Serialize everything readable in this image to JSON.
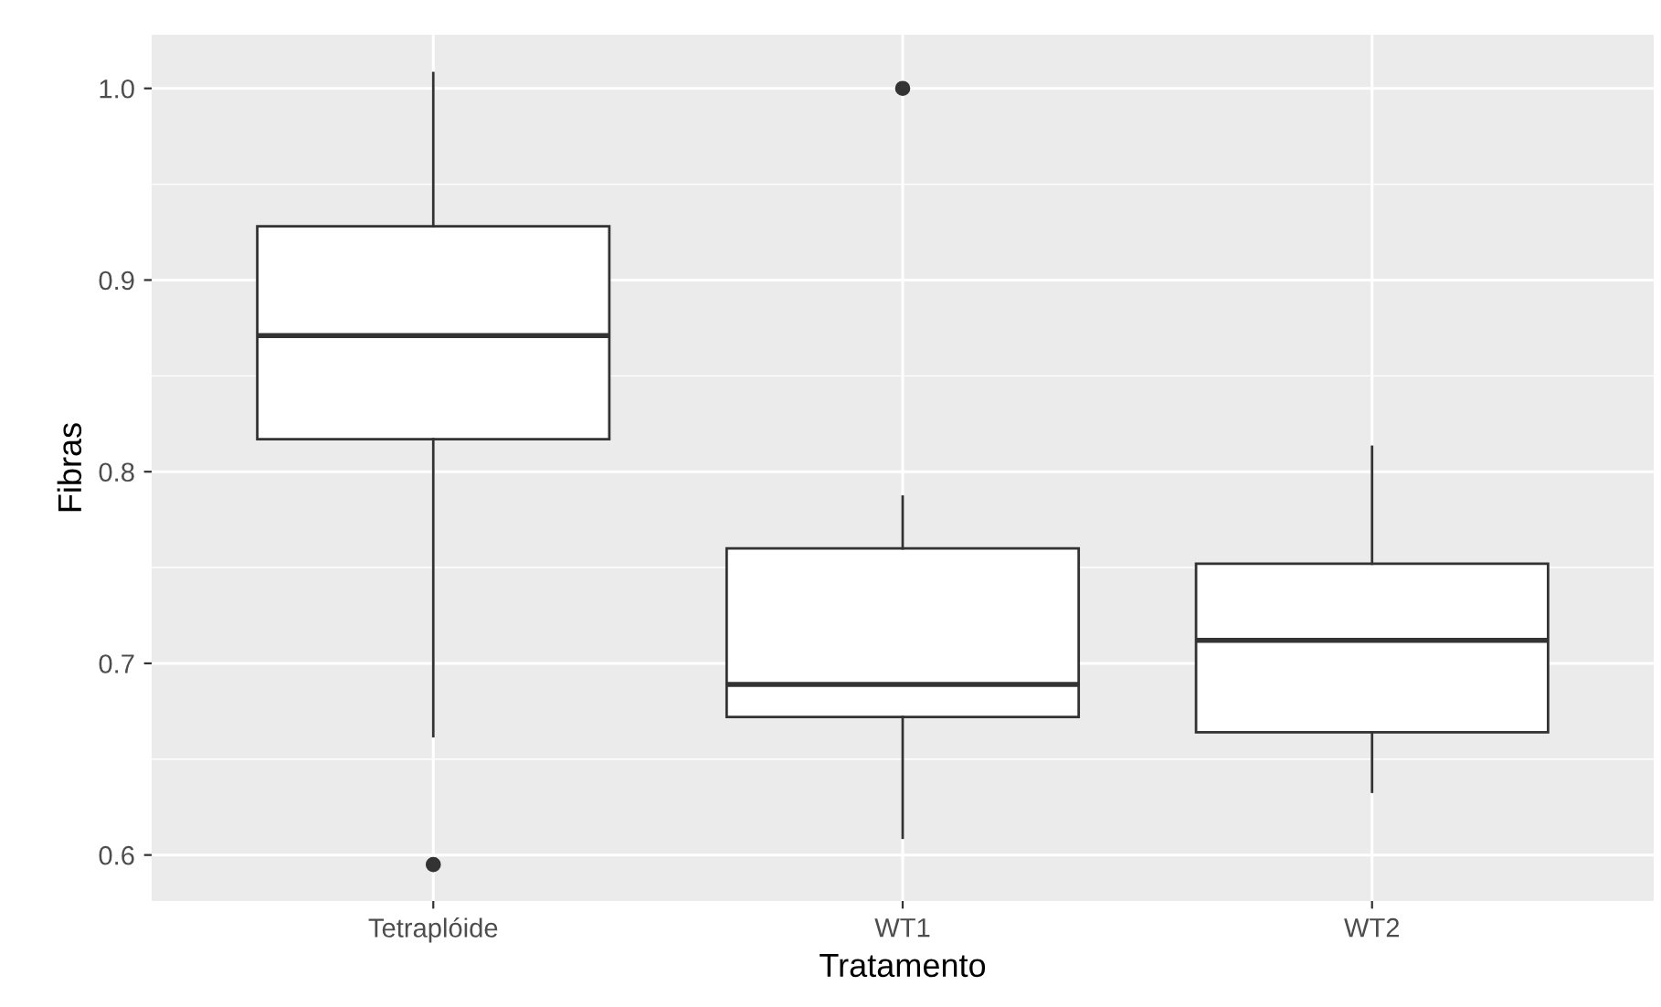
{
  "chart_data": {
    "type": "box",
    "xlabel": "Tratamento",
    "ylabel": "Fibras",
    "categories": [
      "Tetraplóide",
      "WT1",
      "WT2"
    ],
    "boxes": [
      {
        "low": 0.662,
        "q1": 0.817,
        "median": 0.871,
        "q3": 0.928,
        "high": 1.008,
        "outliers": [
          0.595
        ]
      },
      {
        "low": 0.609,
        "q1": 0.672,
        "median": 0.689,
        "q3": 0.76,
        "high": 0.787,
        "outliers": [
          1.0
        ]
      },
      {
        "low": 0.633,
        "q1": 0.664,
        "median": 0.712,
        "q3": 0.752,
        "high": 0.813
      }
    ],
    "ylim": [
      0.576,
      1.028
    ],
    "yticks": [
      {
        "value": 0.6,
        "label": "0.6"
      },
      {
        "value": 0.7,
        "label": "0.7"
      },
      {
        "value": 0.8,
        "label": "0.8"
      },
      {
        "value": 0.9,
        "label": "0.9"
      },
      {
        "value": 1.0,
        "label": "1.0"
      }
    ],
    "grid": true
  }
}
